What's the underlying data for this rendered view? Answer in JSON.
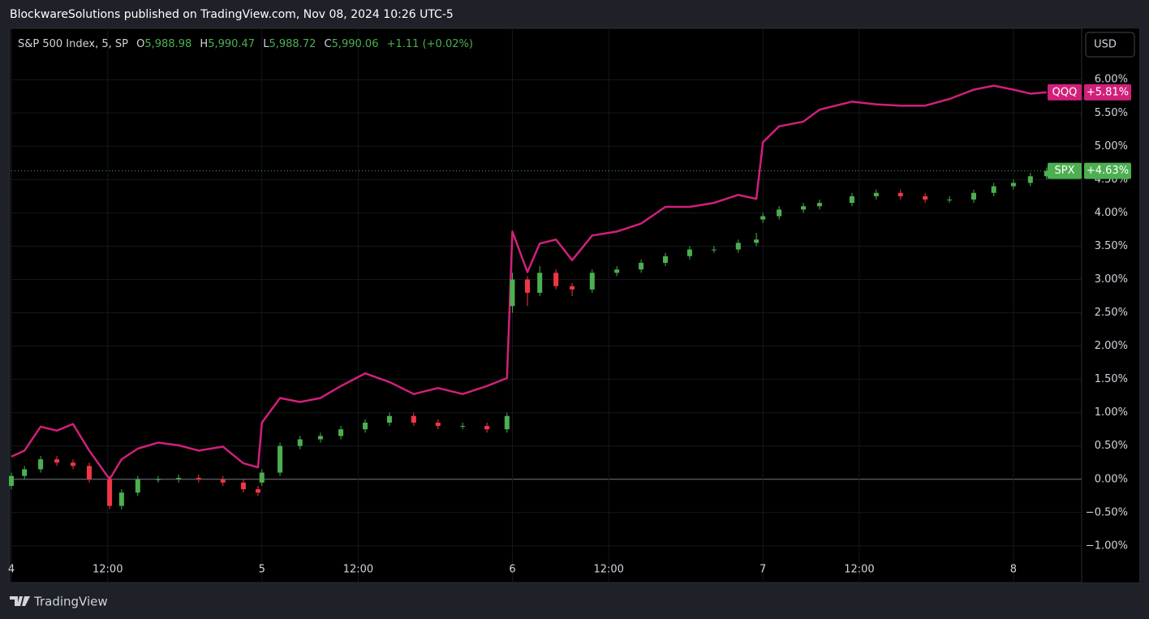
{
  "header": {
    "publisher": "BlockwareSolutions published on TradingView.com, Nov 08, 2024 10:26 UTC-5",
    "brand": "TradingView",
    "currency": "USD"
  },
  "chart_data": {
    "type": "candlestick-line",
    "info": {
      "symbol": "S&P 500 Index, 5, SP",
      "o_label": "O",
      "o": "5,988.98",
      "h_label": "H",
      "h": "5,990.47",
      "l_label": "L",
      "l": "5,988.72",
      "c_label": "C",
      "c": "5,990.06",
      "change": "+1.11 (+0.02%)"
    },
    "x": [
      0,
      0.34,
      0.76,
      1.18,
      1.6,
      2.02,
      2.55,
      2.86,
      3.28,
      3.81,
      4.34,
      4.86,
      5.49,
      6.02,
      6.4,
      6.5,
      6.97,
      7.49,
      8.02,
      8.55,
      9.18,
      9.81,
      10.44,
      11.07,
      11.71,
      12.34,
      12.86,
      13.0,
      13.39,
      13.71,
      14.13,
      14.55,
      15.07,
      15.71,
      16.34,
      16.97,
      17.6,
      18.23,
      18.86,
      19.33,
      19.5,
      19.92,
      20.55,
      20.97,
      21.81,
      22.44,
      23.07,
      23.71,
      24.34,
      24.97,
      25.49,
      26.0,
      26.44,
      26.86
    ],
    "xlim": [
      0,
      27.77
    ],
    "xticks": [
      {
        "value": 0,
        "label": "4"
      },
      {
        "value": 2.5,
        "label": "12:00"
      },
      {
        "value": 6.5,
        "label": "5"
      },
      {
        "value": 9,
        "label": "12:00"
      },
      {
        "value": 13,
        "label": "6"
      },
      {
        "value": 15.5,
        "label": "12:00"
      },
      {
        "value": 19.5,
        "label": "7"
      },
      {
        "value": 22,
        "label": "12:00"
      },
      {
        "value": 26,
        "label": "8"
      }
    ],
    "ylim": [
      -1.55,
      6.77
    ],
    "yticks": [
      {
        "value": -1,
        "label": "−1.00%"
      },
      {
        "value": -0.5,
        "label": "−0.50%"
      },
      {
        "value": 0,
        "label": "0.00%"
      },
      {
        "value": 0.5,
        "label": "0.50%"
      },
      {
        "value": 1,
        "label": "1.00%"
      },
      {
        "value": 1.5,
        "label": "1.50%"
      },
      {
        "value": 2,
        "label": "2.00%"
      },
      {
        "value": 2.5,
        "label": "2.50%"
      },
      {
        "value": 3,
        "label": "3.00%"
      },
      {
        "value": 3.5,
        "label": "3.50%"
      },
      {
        "value": 4,
        "label": "4.00%"
      },
      {
        "value": 4.5,
        "label": "4.50%"
      },
      {
        "value": 5,
        "label": "5.00%"
      },
      {
        "value": 5.5,
        "label": "5.50%"
      },
      {
        "value": 6,
        "label": "6.00%"
      }
    ],
    "grid": true,
    "series": [
      {
        "name": "QQQ",
        "kind": "line",
        "color": "#d0207a",
        "last_label": "+5.81%",
        "values": [
          0.34,
          0.43,
          0.79,
          0.73,
          0.83,
          0.43,
          0.0,
          0.3,
          0.46,
          0.55,
          0.51,
          0.43,
          0.49,
          0.24,
          0.18,
          0.85,
          1.22,
          1.16,
          1.22,
          1.4,
          1.59,
          1.46,
          1.28,
          1.37,
          1.28,
          1.4,
          1.52,
          3.72,
          3.11,
          3.54,
          3.6,
          3.29,
          3.66,
          3.72,
          3.84,
          4.09,
          4.09,
          4.15,
          4.27,
          4.21,
          5.06,
          5.3,
          5.37,
          5.55,
          5.67,
          5.63,
          5.61,
          5.61,
          5.71,
          5.85,
          5.91,
          5.85,
          5.79,
          5.81
        ]
      },
      {
        "name": "SPX",
        "kind": "candle",
        "color": "#4caf50",
        "down_color": "#f23645",
        "last_label": "+4.63%",
        "open": [
          -0.1,
          0.05,
          0.15,
          0.3,
          0.25,
          0.2,
          0.0,
          -0.4,
          -0.2,
          0.0,
          0.0,
          0.02,
          0.0,
          -0.05,
          -0.15,
          -0.05,
          0.1,
          0.5,
          0.6,
          0.65,
          0.75,
          0.85,
          0.95,
          0.85,
          0.8,
          0.8,
          0.75,
          2.6,
          3.0,
          2.8,
          3.1,
          2.9,
          2.85,
          3.1,
          3.15,
          3.25,
          3.35,
          3.45,
          3.45,
          3.55,
          3.9,
          3.95,
          4.05,
          4.1,
          4.15,
          4.25,
          4.3,
          4.25,
          4.2,
          4.2,
          4.3,
          4.4,
          4.45,
          4.55
        ],
        "high": [
          0.1,
          0.2,
          0.35,
          0.35,
          0.3,
          0.25,
          0.05,
          -0.15,
          0.05,
          0.05,
          0.07,
          0.07,
          0.05,
          0.0,
          -0.1,
          0.15,
          0.55,
          0.65,
          0.7,
          0.8,
          0.9,
          1.0,
          1.0,
          0.9,
          0.85,
          0.85,
          1.0,
          3.1,
          3.05,
          3.2,
          3.15,
          2.95,
          3.15,
          3.2,
          3.3,
          3.4,
          3.5,
          3.5,
          3.6,
          3.7,
          4.0,
          4.1,
          4.15,
          4.2,
          4.3,
          4.35,
          4.35,
          4.3,
          4.25,
          4.35,
          4.45,
          4.5,
          4.6,
          4.68
        ],
        "low": [
          -0.15,
          0.0,
          0.1,
          0.2,
          0.15,
          -0.05,
          -0.45,
          -0.45,
          -0.25,
          -0.05,
          -0.05,
          -0.05,
          -0.1,
          -0.2,
          -0.25,
          -0.1,
          0.05,
          0.45,
          0.55,
          0.6,
          0.7,
          0.8,
          0.8,
          0.75,
          0.75,
          0.7,
          0.7,
          2.5,
          2.6,
          2.75,
          2.85,
          2.75,
          2.8,
          3.05,
          3.1,
          3.2,
          3.3,
          3.4,
          3.4,
          3.5,
          3.85,
          3.9,
          4.0,
          4.05,
          4.1,
          4.2,
          4.2,
          4.15,
          4.15,
          4.15,
          4.25,
          4.35,
          4.4,
          4.5
        ],
        "close": [
          0.05,
          0.15,
          0.3,
          0.25,
          0.2,
          0.0,
          -0.4,
          -0.2,
          0.0,
          0.0,
          0.02,
          0.0,
          -0.05,
          -0.15,
          -0.2,
          0.1,
          0.5,
          0.6,
          0.65,
          0.75,
          0.85,
          0.95,
          0.85,
          0.8,
          0.8,
          0.75,
          0.95,
          3.0,
          2.8,
          3.1,
          2.9,
          2.85,
          3.1,
          3.15,
          3.25,
          3.35,
          3.45,
          3.45,
          3.55,
          3.6,
          3.95,
          4.05,
          4.1,
          4.15,
          4.25,
          4.3,
          4.25,
          4.2,
          4.2,
          4.3,
          4.4,
          4.45,
          4.55,
          4.63
        ]
      }
    ]
  }
}
